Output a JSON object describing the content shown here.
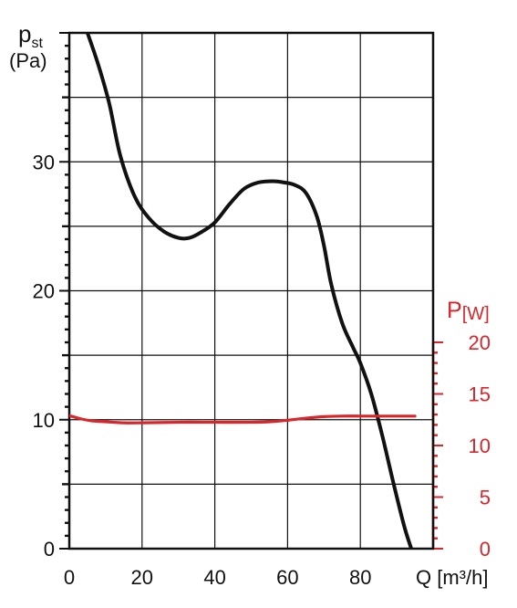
{
  "chart_data": {
    "type": "line",
    "y_left": {
      "label_main": "p",
      "label_sub": "st",
      "unit": "(Pa)",
      "ylim": [
        0,
        40
      ],
      "ticks": [
        0,
        10,
        20,
        30
      ]
    },
    "y_right": {
      "label_main": "P",
      "label_unit": "[W]",
      "ylim": [
        0,
        20
      ],
      "ticks": [
        0,
        5,
        10,
        15,
        20
      ]
    },
    "x": {
      "label": "Q [m³/h]",
      "xlim": [
        0,
        100
      ],
      "ticks": [
        0,
        20,
        40,
        60,
        80
      ]
    },
    "grid": true,
    "series": [
      {
        "axis": "left",
        "color": "#111111",
        "points": [
          [
            5,
            40
          ],
          [
            8,
            37.5
          ],
          [
            11,
            34.5
          ],
          [
            14,
            30.5
          ],
          [
            18,
            27.3
          ],
          [
            22,
            25.6
          ],
          [
            26,
            24.6
          ],
          [
            30,
            24.1
          ],
          [
            33,
            24.1
          ],
          [
            36,
            24.5
          ],
          [
            40,
            25.3
          ],
          [
            44,
            26.7
          ],
          [
            48,
            27.9
          ],
          [
            52,
            28.4
          ],
          [
            56,
            28.5
          ],
          [
            59,
            28.4
          ],
          [
            62,
            28.2
          ],
          [
            65,
            27.6
          ],
          [
            68,
            25.8
          ],
          [
            70,
            23.5
          ],
          [
            72,
            20.5
          ],
          [
            75,
            17.5
          ],
          [
            78,
            15.6
          ],
          [
            80,
            14.4
          ],
          [
            83,
            12
          ],
          [
            86,
            8.8
          ],
          [
            89,
            5.2
          ],
          [
            92,
            1.8
          ],
          [
            94,
            0
          ]
        ]
      },
      {
        "axis": "right",
        "color": "#d8262b",
        "points": [
          [
            0,
            12.9
          ],
          [
            3,
            12.6
          ],
          [
            6,
            12.4
          ],
          [
            10,
            12.3
          ],
          [
            15,
            12.2
          ],
          [
            20,
            12.2
          ],
          [
            30,
            12.25
          ],
          [
            40,
            12.25
          ],
          [
            50,
            12.25
          ],
          [
            55,
            12.3
          ],
          [
            60,
            12.45
          ],
          [
            65,
            12.65
          ],
          [
            70,
            12.8
          ],
          [
            75,
            12.85
          ],
          [
            80,
            12.85
          ],
          [
            85,
            12.85
          ],
          [
            90,
            12.85
          ],
          [
            95,
            12.85
          ]
        ]
      }
    ]
  }
}
